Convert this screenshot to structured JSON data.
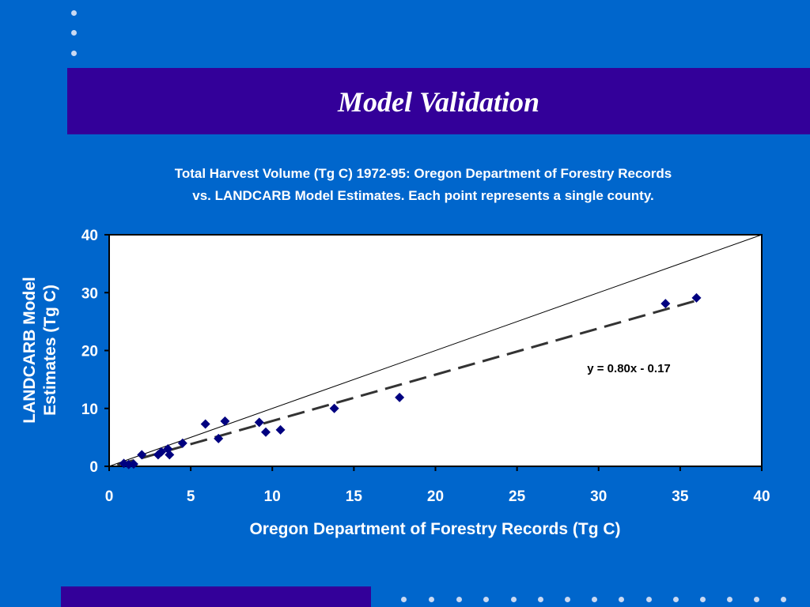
{
  "slide": {
    "title": "Model Validation",
    "accent_color": "#330099",
    "background_color": "#0066cc"
  },
  "chart_data": {
    "type": "scatter",
    "title_line1": "Total Harvest Volume (Tg C) 1972-95: Oregon Department of Forestry Records",
    "title_line2": "vs. LANDCARB Model Estimates.  Each point represents a single county.",
    "xlabel": "Oregon Department of Forestry Records (Tg C)",
    "ylabel_line1": "LANDCARB Model",
    "ylabel_line2": "Estimates (Tg C)",
    "xlim": [
      0,
      40
    ],
    "ylim": [
      0,
      40
    ],
    "xticks": [
      0,
      5,
      10,
      15,
      20,
      25,
      30,
      35,
      40
    ],
    "yticks": [
      0,
      10,
      20,
      30,
      40
    ],
    "grid": false,
    "marker": "diamond",
    "marker_color": "#000080",
    "points": [
      {
        "x": 0.9,
        "y": 0.5
      },
      {
        "x": 1.2,
        "y": 0.3
      },
      {
        "x": 1.5,
        "y": 0.4
      },
      {
        "x": 2.0,
        "y": 2.0
      },
      {
        "x": 3.0,
        "y": 2.0
      },
      {
        "x": 3.2,
        "y": 2.5
      },
      {
        "x": 3.6,
        "y": 3.0
      },
      {
        "x": 3.7,
        "y": 2.0
      },
      {
        "x": 4.5,
        "y": 4.0
      },
      {
        "x": 5.9,
        "y": 7.3
      },
      {
        "x": 6.7,
        "y": 4.8
      },
      {
        "x": 7.1,
        "y": 7.8
      },
      {
        "x": 9.2,
        "y": 7.6
      },
      {
        "x": 9.6,
        "y": 5.9
      },
      {
        "x": 10.5,
        "y": 6.3
      },
      {
        "x": 13.8,
        "y": 10.0
      },
      {
        "x": 17.8,
        "y": 11.9
      },
      {
        "x": 34.1,
        "y": 28.1
      },
      {
        "x": 36.0,
        "y": 29.1
      }
    ],
    "reference_line": {
      "slope": 1,
      "intercept": 0,
      "style": "solid"
    },
    "trendline": {
      "slope": 0.8,
      "intercept": -0.17,
      "style": "dashed",
      "x_range": [
        0.5,
        36
      ]
    },
    "equation_label": "y = 0.80x - 0.17"
  }
}
